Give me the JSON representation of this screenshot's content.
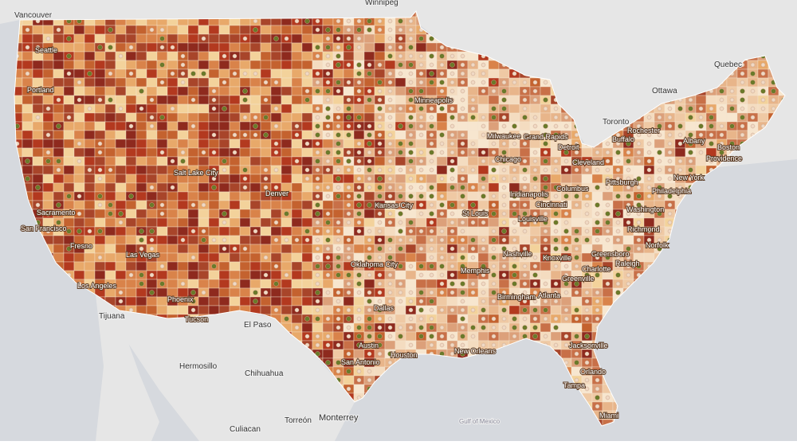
{
  "labels": [
    "Winnipeg",
    "Vancouver",
    "Seattle",
    "Portland",
    "Quebec",
    "Ottawa",
    "Toronto",
    "Rochester",
    "Buffalo",
    "Albany",
    "Boston",
    "Providence",
    "New York",
    "Philadelphia",
    "Washington",
    "Richmond",
    "Norfolk",
    "Pittsburgh",
    "Cleveland",
    "Detroit",
    "Grand Rapids",
    "Milwaukee",
    "Chicago",
    "Minneapolis",
    "Salt Lake City",
    "Denver",
    "Kansas City",
    "St Louis",
    "Indianapolis",
    "Columbus",
    "Cincinnati",
    "Louisville",
    "Nashville",
    "Knoxville",
    "Greensboro",
    "Raleigh",
    "Charlotte",
    "Greenville",
    "Atlanta",
    "Birmingham",
    "Memphis",
    "Oklahoma City",
    "Dallas",
    "Austin",
    "San Antonio",
    "Houston",
    "New Orleans",
    "Jacksonville",
    "Orlando",
    "Tampa",
    "Miami",
    "Sacramento",
    "San Francisco",
    "Fresno",
    "Las Vegas",
    "Los Angeles",
    "Tijuana",
    "Phoenix",
    "Tucson",
    "El Paso",
    "Hermosillo",
    "Chihuahua",
    "Culiacan",
    "Torreón",
    "Monterrey",
    "Gulf of Mexico"
  ]
}
